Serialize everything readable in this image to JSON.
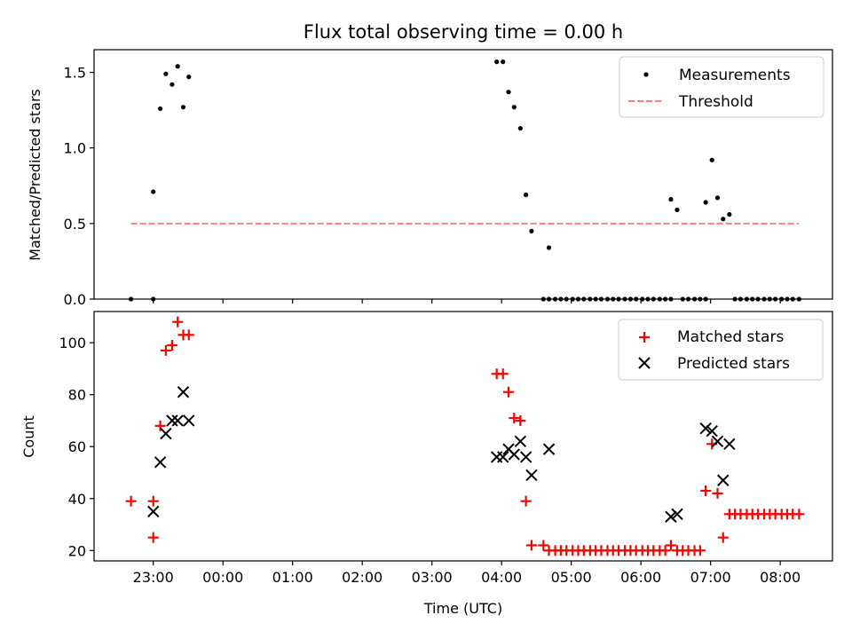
{
  "chart_data": {
    "type": "scatter",
    "title": "Flux total observing time = 0.00 h",
    "xlabel": "Time (UTC)",
    "x_tick_labels": [
      "23:00",
      "00:00",
      "01:00",
      "02:00",
      "03:00",
      "04:00",
      "05:00",
      "06:00",
      "07:00",
      "08:00"
    ],
    "x_tick_hours": [
      23,
      24,
      25,
      26,
      27,
      28,
      29,
      30,
      31,
      32
    ],
    "xlim_hours": [
      22.15,
      32.75
    ],
    "panels": [
      {
        "ylabel": "Matched/Predicted stars",
        "ylim": [
          0,
          1.65
        ],
        "y_ticks": [
          "0.0",
          "0.5",
          "1.0",
          "1.5"
        ],
        "legend_position": "top-right",
        "series": [
          {
            "name": "Measurements",
            "marker": "dot",
            "color": "#000000",
            "x_hours": [
              22.68,
              23.0,
              23.0,
              23.1,
              23.18,
              23.27,
              23.35,
              23.43,
              23.51,
              27.93,
              28.02,
              28.1,
              28.18,
              28.27,
              28.35,
              28.43,
              28.6,
              28.68,
              28.68,
              28.77,
              28.85,
              28.93,
              29.02,
              29.1,
              29.18,
              29.27,
              29.35,
              29.43,
              29.52,
              29.6,
              29.68,
              29.77,
              29.85,
              29.93,
              30.02,
              30.1,
              30.18,
              30.27,
              30.35,
              30.43,
              30.43,
              30.52,
              30.6,
              30.68,
              30.77,
              30.85,
              30.93,
              30.93,
              31.02,
              31.1,
              31.18,
              31.27,
              31.35,
              31.43,
              31.52,
              31.6,
              31.68,
              31.77,
              31.85,
              31.93,
              32.02,
              32.1,
              32.18,
              32.27
            ],
            "y": [
              0.0,
              0.0,
              0.71,
              1.26,
              1.49,
              1.42,
              1.54,
              1.27,
              1.47,
              1.57,
              1.57,
              1.37,
              1.27,
              1.13,
              0.69,
              0.45,
              0.0,
              0.34,
              0.0,
              0.0,
              0.0,
              0.0,
              0.0,
              0.0,
              0.0,
              0.0,
              0.0,
              0.0,
              0.0,
              0.0,
              0.0,
              0.0,
              0.0,
              0.0,
              0.0,
              0.0,
              0.0,
              0.0,
              0.0,
              0.66,
              0.0,
              0.59,
              0.0,
              0.0,
              0.0,
              0.0,
              0.64,
              0.0,
              0.92,
              0.67,
              0.53,
              0.56,
              0.0,
              0.0,
              0.0,
              0.0,
              0.0,
              0.0,
              0.0,
              0.0,
              0.0,
              0.0,
              0.0,
              0.0
            ]
          },
          {
            "name": "Threshold",
            "marker": "dashed-line",
            "color": "#ff7f7f",
            "x_hours": [
              22.68,
              32.27
            ],
            "y": [
              0.5,
              0.5
            ]
          }
        ]
      },
      {
        "ylabel": "Count",
        "ylim": [
          16,
          112
        ],
        "y_ticks": [
          "20",
          "40",
          "60",
          "80",
          "100"
        ],
        "legend_position": "top-right",
        "series": [
          {
            "name": "Matched stars",
            "marker": "plus",
            "color": "#ff0000",
            "x_hours": [
              22.68,
              23.0,
              23.0,
              23.1,
              23.18,
              23.27,
              23.35,
              23.43,
              23.51,
              27.93,
              28.02,
              28.1,
              28.18,
              28.27,
              28.35,
              28.43,
              28.6,
              28.68,
              28.77,
              28.85,
              28.93,
              29.02,
              29.1,
              29.18,
              29.27,
              29.35,
              29.43,
              29.52,
              29.6,
              29.68,
              29.77,
              29.85,
              29.93,
              30.02,
              30.1,
              30.18,
              30.27,
              30.35,
              30.43,
              30.52,
              30.6,
              30.68,
              30.77,
              30.85,
              30.93,
              31.02,
              31.1,
              31.18,
              31.27,
              31.35,
              31.43,
              31.52,
              31.6,
              31.68,
              31.77,
              31.85,
              31.93,
              32.02,
              32.1,
              32.18,
              32.27
            ],
            "y": [
              39,
              39,
              25,
              68,
              97,
              99,
              108,
              103,
              103,
              88,
              88,
              81,
              71,
              70,
              39,
              22,
              22,
              20,
              20,
              20,
              20,
              20,
              20,
              20,
              20,
              20,
              20,
              20,
              20,
              20,
              20,
              20,
              20,
              20,
              20,
              20,
              20,
              20,
              22,
              20,
              20,
              20,
              20,
              20,
              43,
              61,
              42,
              25,
              34,
              34,
              34,
              34,
              34,
              34,
              34,
              34,
              34,
              34,
              34,
              34,
              34
            ]
          },
          {
            "name": "Predicted stars",
            "marker": "x",
            "color": "#000000",
            "x_hours": [
              23.0,
              23.1,
              23.18,
              23.27,
              23.35,
              23.43,
              23.51,
              27.93,
              28.02,
              28.1,
              28.18,
              28.27,
              28.35,
              28.43,
              28.68,
              30.43,
              30.52,
              30.93,
              31.02,
              31.1,
              31.18,
              31.27
            ],
            "y": [
              35,
              54,
              65,
              70,
              70,
              81,
              70,
              56,
              56,
              59,
              57,
              62,
              56,
              49,
              59,
              33,
              34,
              67,
              66,
              62,
              47,
              61
            ]
          }
        ]
      }
    ]
  }
}
